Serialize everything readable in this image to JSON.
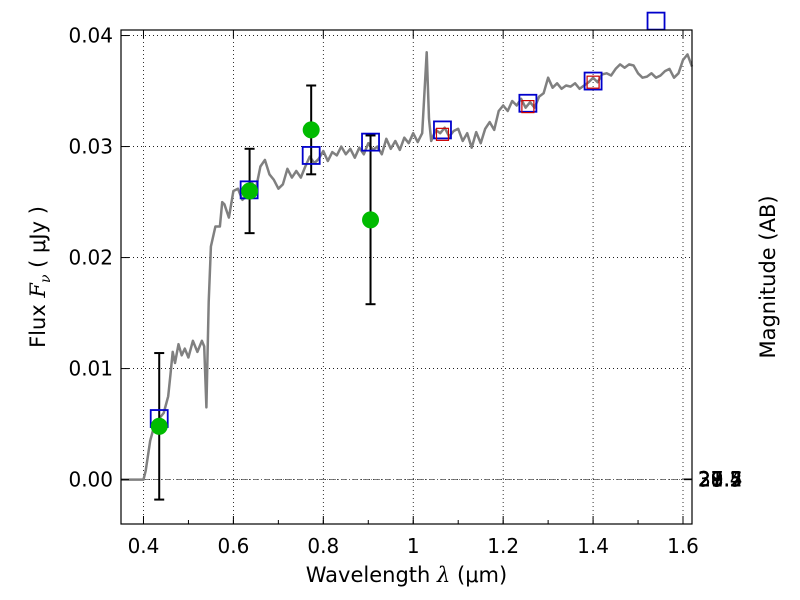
{
  "chart_data": {
    "type": "scatter",
    "xlabel": "Wavelength",
    "xlabel_symbol": "λ",
    "xlabel_unit": "(μm)",
    "ylabel": "Flux",
    "ylabel_symbol": "F",
    "ylabel_subscript": "ν",
    "ylabel_unit": "( μJy )",
    "y2label": "Magnitude (AB)",
    "xlim": [
      0.35,
      1.62
    ],
    "ylim": [
      -0.004,
      0.0405
    ],
    "grid": true,
    "x_ticks": [
      {
        "value": 0.4,
        "label": "0.4"
      },
      {
        "value": 0.6,
        "label": "0.6"
      },
      {
        "value": 0.8,
        "label": "0.8"
      },
      {
        "value": 1.0,
        "label": "1"
      },
      {
        "value": 1.2,
        "label": "1.2"
      },
      {
        "value": 1.4,
        "label": "1.4"
      },
      {
        "value": 1.6,
        "label": "1.6"
      }
    ],
    "y_ticks": [
      {
        "value": 0.0,
        "label": "0.00"
      },
      {
        "value": 0.01,
        "label": "0.01"
      },
      {
        "value": 0.02,
        "label": "0.02"
      },
      {
        "value": 0.03,
        "label": "0.03"
      },
      {
        "value": 0.04,
        "label": "0.04"
      }
    ],
    "mag_ticks": [
      {
        "value": 27.4,
        "label": "27.4"
      },
      {
        "value": 27.5,
        "label": "27.5"
      },
      {
        "value": 27.7,
        "label": "27.7"
      },
      {
        "value": 28.0,
        "label": "28"
      },
      {
        "value": 28.2,
        "label": "28.2"
      },
      {
        "value": 28.5,
        "label": "28.5"
      },
      {
        "value": 29.0,
        "label": "29"
      },
      {
        "value": 29.5,
        "label": "29.5"
      },
      {
        "value": 30.0,
        "label": "30"
      },
      {
        "value": 31.0,
        "label": "31"
      }
    ],
    "sed_model": {
      "color": "#808080",
      "points": [
        [
          0.35,
          0.0
        ],
        [
          0.4,
          0.0
        ],
        [
          0.405,
          0.0008
        ],
        [
          0.415,
          0.0035
        ],
        [
          0.425,
          0.005
        ],
        [
          0.435,
          0.0055
        ],
        [
          0.445,
          0.006
        ],
        [
          0.455,
          0.0075
        ],
        [
          0.46,
          0.0095
        ],
        [
          0.465,
          0.0115
        ],
        [
          0.47,
          0.0105
        ],
        [
          0.478,
          0.0122
        ],
        [
          0.485,
          0.0112
        ],
        [
          0.492,
          0.0118
        ],
        [
          0.5,
          0.011
        ],
        [
          0.51,
          0.0125
        ],
        [
          0.52,
          0.0115
        ],
        [
          0.53,
          0.0125
        ],
        [
          0.535,
          0.012
        ],
        [
          0.54,
          0.0065
        ],
        [
          0.545,
          0.016
        ],
        [
          0.55,
          0.021
        ],
        [
          0.56,
          0.0228
        ],
        [
          0.57,
          0.0228
        ],
        [
          0.575,
          0.025
        ],
        [
          0.58,
          0.0248
        ],
        [
          0.59,
          0.0236
        ],
        [
          0.6,
          0.026
        ],
        [
          0.61,
          0.0262
        ],
        [
          0.62,
          0.0252
        ],
        [
          0.63,
          0.0256
        ],
        [
          0.64,
          0.0268
        ],
        [
          0.65,
          0.0262
        ],
        [
          0.66,
          0.0282
        ],
        [
          0.67,
          0.0288
        ],
        [
          0.68,
          0.0275
        ],
        [
          0.69,
          0.027
        ],
        [
          0.7,
          0.0262
        ],
        [
          0.71,
          0.0266
        ],
        [
          0.72,
          0.028
        ],
        [
          0.73,
          0.0272
        ],
        [
          0.74,
          0.0278
        ],
        [
          0.75,
          0.0272
        ],
        [
          0.76,
          0.0282
        ],
        [
          0.77,
          0.0291
        ],
        [
          0.78,
          0.0285
        ],
        [
          0.79,
          0.0289
        ],
        [
          0.8,
          0.0296
        ],
        [
          0.81,
          0.0287
        ],
        [
          0.82,
          0.0295
        ],
        [
          0.83,
          0.0292
        ],
        [
          0.84,
          0.03
        ],
        [
          0.85,
          0.0293
        ],
        [
          0.86,
          0.0298
        ],
        [
          0.87,
          0.029
        ],
        [
          0.88,
          0.0299
        ],
        [
          0.89,
          0.0293
        ],
        [
          0.9,
          0.0303
        ],
        [
          0.91,
          0.0297
        ],
        [
          0.92,
          0.03
        ],
        [
          0.93,
          0.0293
        ],
        [
          0.94,
          0.0307
        ],
        [
          0.95,
          0.0298
        ],
        [
          0.96,
          0.0305
        ],
        [
          0.97,
          0.0297
        ],
        [
          0.98,
          0.0308
        ],
        [
          0.99,
          0.0303
        ],
        [
          1.0,
          0.0312
        ],
        [
          1.01,
          0.0304
        ],
        [
          1.02,
          0.0312
        ],
        [
          1.03,
          0.0385
        ],
        [
          1.035,
          0.0325
        ],
        [
          1.04,
          0.0305
        ],
        [
          1.05,
          0.0315
        ],
        [
          1.06,
          0.0312
        ],
        [
          1.07,
          0.0317
        ],
        [
          1.08,
          0.0309
        ],
        [
          1.09,
          0.0314
        ],
        [
          1.1,
          0.0316
        ],
        [
          1.11,
          0.0305
        ],
        [
          1.12,
          0.0312
        ],
        [
          1.13,
          0.0299
        ],
        [
          1.14,
          0.0313
        ],
        [
          1.15,
          0.0303
        ],
        [
          1.16,
          0.0316
        ],
        [
          1.17,
          0.0322
        ],
        [
          1.18,
          0.0315
        ],
        [
          1.19,
          0.0332
        ],
        [
          1.2,
          0.0337
        ],
        [
          1.21,
          0.0332
        ],
        [
          1.22,
          0.0341
        ],
        [
          1.23,
          0.0337
        ],
        [
          1.24,
          0.0343
        ],
        [
          1.25,
          0.0335
        ],
        [
          1.26,
          0.034
        ],
        [
          1.27,
          0.0335
        ],
        [
          1.28,
          0.0345
        ],
        [
          1.29,
          0.0348
        ],
        [
          1.3,
          0.0362
        ],
        [
          1.31,
          0.0353
        ],
        [
          1.32,
          0.0357
        ],
        [
          1.33,
          0.0352
        ],
        [
          1.34,
          0.0355
        ],
        [
          1.35,
          0.0354
        ],
        [
          1.36,
          0.0357
        ],
        [
          1.37,
          0.0352
        ],
        [
          1.38,
          0.0355
        ],
        [
          1.39,
          0.0358
        ],
        [
          1.4,
          0.0362
        ],
        [
          1.41,
          0.0358
        ],
        [
          1.42,
          0.0365
        ],
        [
          1.43,
          0.0366
        ],
        [
          1.44,
          0.0364
        ],
        [
          1.45,
          0.037
        ],
        [
          1.46,
          0.0374
        ],
        [
          1.47,
          0.0371
        ],
        [
          1.48,
          0.0374
        ],
        [
          1.49,
          0.0373
        ],
        [
          1.5,
          0.0366
        ],
        [
          1.51,
          0.0362
        ],
        [
          1.52,
          0.0363
        ],
        [
          1.53,
          0.0366
        ],
        [
          1.54,
          0.0362
        ],
        [
          1.55,
          0.0364
        ],
        [
          1.56,
          0.0368
        ],
        [
          1.57,
          0.037
        ],
        [
          1.58,
          0.0362
        ],
        [
          1.59,
          0.0366
        ],
        [
          1.6,
          0.0378
        ],
        [
          1.61,
          0.0383
        ],
        [
          1.62,
          0.0372
        ]
      ]
    },
    "model_photometry": {
      "color": "#0000cc",
      "points": [
        [
          0.435,
          0.0055
        ],
        [
          0.635,
          0.0261
        ],
        [
          0.773,
          0.0292
        ],
        [
          0.905,
          0.0304
        ],
        [
          1.065,
          0.0315
        ],
        [
          1.255,
          0.0339
        ],
        [
          1.4,
          0.0359
        ],
        [
          1.54,
          0.0413
        ]
      ]
    },
    "synthetic_photometry": {
      "color": "#cc0000",
      "points": [
        [
          1.065,
          0.0311
        ],
        [
          1.255,
          0.0336
        ],
        [
          1.4,
          0.0358
        ]
      ]
    },
    "observed": {
      "color": "#00bb00",
      "points": [
        {
          "x": 0.435,
          "y": 0.0048,
          "yerr": 0.0066
        },
        {
          "x": 0.636,
          "y": 0.026,
          "yerr": 0.0038
        },
        {
          "x": 0.773,
          "y": 0.0315,
          "yerr": 0.004
        },
        {
          "x": 0.905,
          "y": 0.0234,
          "yerr": 0.0076
        }
      ]
    }
  }
}
